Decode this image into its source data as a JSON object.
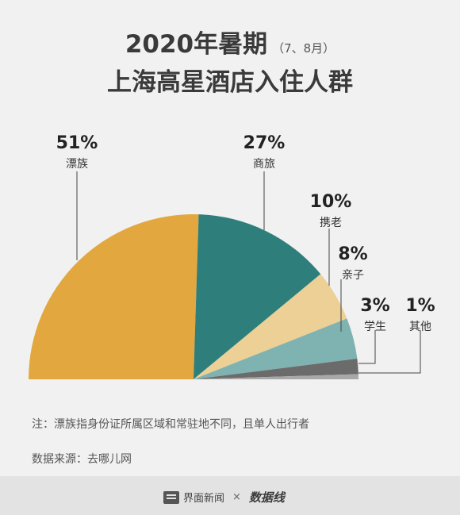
{
  "title": {
    "line1_main": "2020年暑期",
    "line1_sub": "（7、8月）",
    "line2": "上海高星酒店入住人群"
  },
  "chart_data": {
    "type": "pie",
    "categories": [
      "漂族",
      "商旅",
      "携老",
      "亲子",
      "学生",
      "其他"
    ],
    "values": [
      51,
      27,
      10,
      8,
      3,
      1
    ],
    "value_labels": [
      "51%",
      "27%",
      "10%",
      "8%",
      "3%",
      "1%"
    ],
    "colors": [
      "#e2a83f",
      "#2e7f7c",
      "#ecd095",
      "#7fb3b1",
      "#6b6b6b",
      "#a8a8a8"
    ],
    "unit": "%",
    "shape": "half-pie"
  },
  "note": "注：漂族指身份证所属区域和常驻地不同，且单人出行者",
  "source": "数据来源：去哪儿网",
  "footer": {
    "brand_left": "界面新闻",
    "separator": "×",
    "brand_right": "数据线"
  }
}
